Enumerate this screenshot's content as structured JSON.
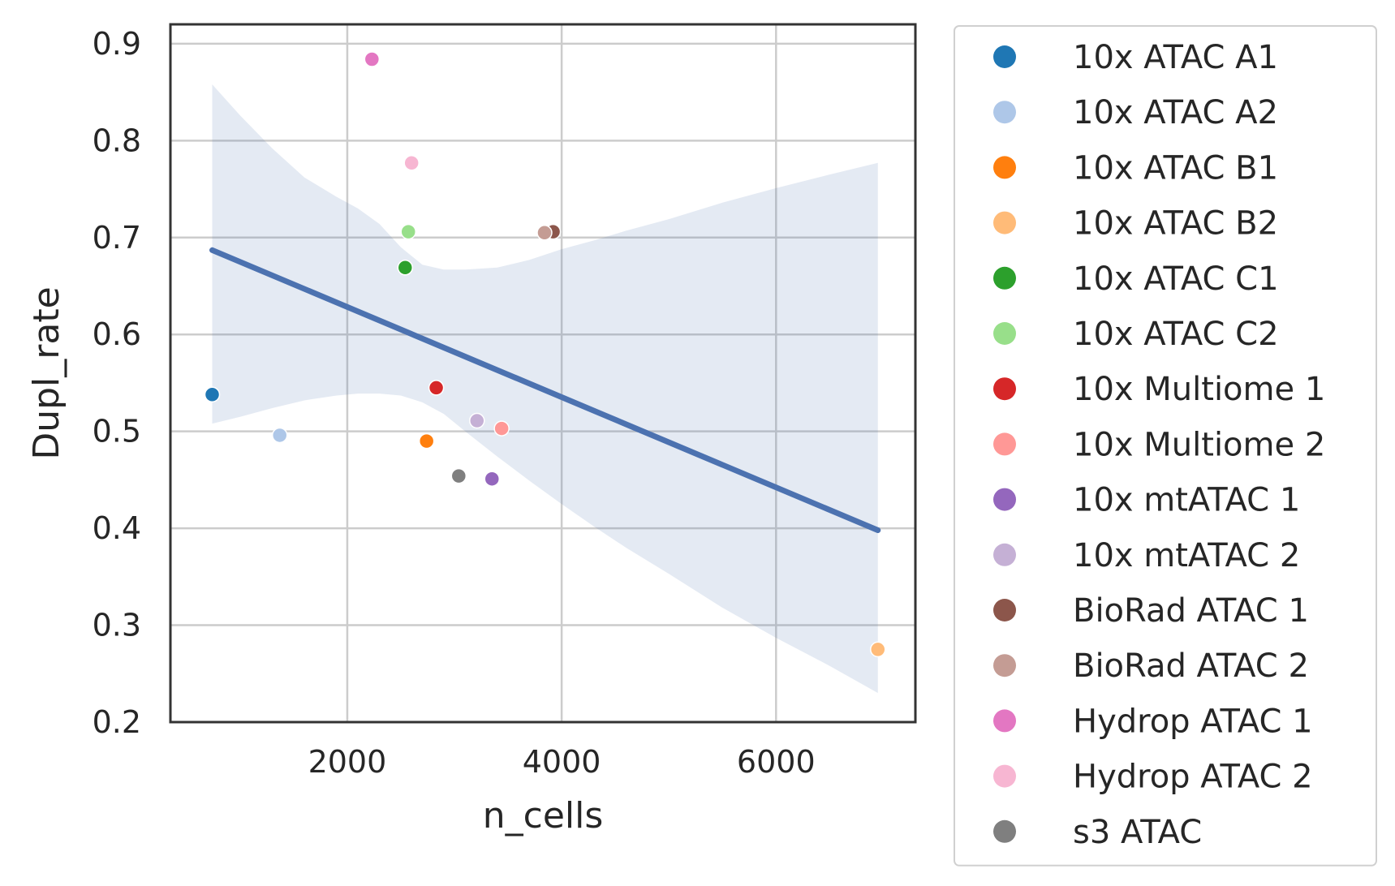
{
  "chart_data": {
    "type": "scatter",
    "title": "",
    "xlabel": "n_cells",
    "ylabel": "Dupl_rate",
    "xlim": [
      350,
      7300
    ],
    "ylim": [
      0.2,
      0.92
    ],
    "xticks": [
      2000,
      4000,
      6000
    ],
    "yticks": [
      0.2,
      0.3,
      0.4,
      0.5,
      0.6,
      0.7,
      0.8,
      0.9
    ],
    "xtick_labels": [
      "2000",
      "4000",
      "6000"
    ],
    "ytick_labels": [
      "0.2",
      "0.3",
      "0.4",
      "0.5",
      "0.6",
      "0.7",
      "0.8",
      "0.9"
    ],
    "grid": true,
    "legend_position": "outside-right",
    "series": [
      {
        "name": "10x ATAC A1",
        "color": "#1f77b4",
        "x": 740,
        "y": 0.538
      },
      {
        "name": "10x ATAC A2",
        "color": "#aec7e8",
        "x": 1370,
        "y": 0.496
      },
      {
        "name": "10x ATAC B1",
        "color": "#ff7f0e",
        "x": 2740,
        "y": 0.49
      },
      {
        "name": "10x ATAC B2",
        "color": "#ffbb78",
        "x": 6950,
        "y": 0.275
      },
      {
        "name": "10x ATAC C1",
        "color": "#2ca02c",
        "x": 2540,
        "y": 0.669
      },
      {
        "name": "10x ATAC C2",
        "color": "#98df8a",
        "x": 2570,
        "y": 0.706
      },
      {
        "name": "10x Multiome 1",
        "color": "#d62728",
        "x": 2830,
        "y": 0.545
      },
      {
        "name": "10x Multiome 2",
        "color": "#ff9896",
        "x": 3440,
        "y": 0.503
      },
      {
        "name": "10x mtATAC 1",
        "color": "#9467bd",
        "x": 3350,
        "y": 0.451
      },
      {
        "name": "10x mtATAC 2",
        "color": "#c5b0d5",
        "x": 3210,
        "y": 0.511
      },
      {
        "name": "BioRad ATAC 1",
        "color": "#8c564b",
        "x": 3920,
        "y": 0.706
      },
      {
        "name": "BioRad ATAC 2",
        "color": "#c49c94",
        "x": 3840,
        "y": 0.705
      },
      {
        "name": "Hydrop ATAC 1",
        "color": "#e377c2",
        "x": 2230,
        "y": 0.884
      },
      {
        "name": "Hydrop ATAC 2",
        "color": "#f7b6d2",
        "x": 2600,
        "y": 0.777
      },
      {
        "name": "s3 ATAC",
        "color": "#7f7f7f",
        "x": 3040,
        "y": 0.454
      }
    ],
    "regression": {
      "color": "#4c72b0",
      "x": [
        740,
        6950
      ],
      "y": [
        0.687,
        0.398
      ],
      "ci_color": "#4c72b0",
      "ci_upper": [
        [
          740,
          0.858
        ],
        [
          1000,
          0.826
        ],
        [
          1300,
          0.792
        ],
        [
          1600,
          0.762
        ],
        [
          1900,
          0.742
        ],
        [
          2100,
          0.73
        ],
        [
          2300,
          0.714
        ],
        [
          2500,
          0.69
        ],
        [
          2700,
          0.672
        ],
        [
          2900,
          0.667
        ],
        [
          3100,
          0.667
        ],
        [
          3400,
          0.669
        ],
        [
          3700,
          0.677
        ],
        [
          4000,
          0.688
        ],
        [
          4300,
          0.697
        ],
        [
          4600,
          0.707
        ],
        [
          5000,
          0.719
        ],
        [
          5500,
          0.736
        ],
        [
          6000,
          0.751
        ],
        [
          6500,
          0.765
        ],
        [
          6950,
          0.777
        ]
      ],
      "ci_lower": [
        [
          740,
          0.508
        ],
        [
          1000,
          0.515
        ],
        [
          1300,
          0.524
        ],
        [
          1600,
          0.532
        ],
        [
          1900,
          0.537
        ],
        [
          2100,
          0.539
        ],
        [
          2300,
          0.539
        ],
        [
          2500,
          0.537
        ],
        [
          2700,
          0.53
        ],
        [
          2900,
          0.518
        ],
        [
          3100,
          0.5
        ],
        [
          3400,
          0.474
        ],
        [
          3700,
          0.449
        ],
        [
          4000,
          0.425
        ],
        [
          4300,
          0.402
        ],
        [
          4600,
          0.38
        ],
        [
          5000,
          0.353
        ],
        [
          5500,
          0.318
        ],
        [
          6000,
          0.287
        ],
        [
          6500,
          0.258
        ],
        [
          6950,
          0.23
        ]
      ]
    }
  }
}
